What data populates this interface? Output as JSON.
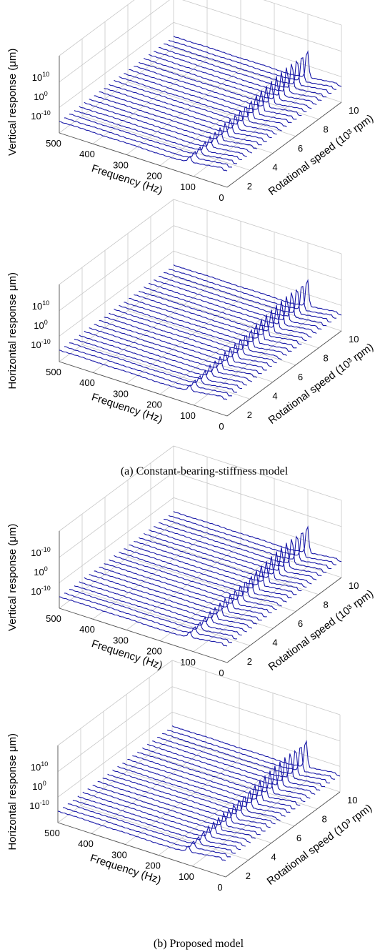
{
  "figure": {
    "caption_a": "(a) Constant-bearing-stiffness model",
    "caption_b": "(b) Proposed model"
  },
  "chart_data": [
    {
      "type": "line",
      "panel": "a-top",
      "zlabel": "Vertical response (μm)",
      "xlabel": "Frequency (Hz)",
      "ylabel": "Rotational speed (10³ rpm)",
      "x_ticks": [
        "500",
        "400",
        "300",
        "200",
        "100",
        "0"
      ],
      "y_ticks": [
        "2",
        "4",
        "6",
        "8",
        "10"
      ],
      "z_ticks": [
        "10^10",
        "10^0",
        "10^-10"
      ],
      "xlim": [
        0,
        500
      ],
      "ylim": [
        1,
        10
      ],
      "zscale": "log",
      "series_count": 24,
      "x": [
        0,
        50,
        80,
        100,
        110,
        120,
        140,
        200,
        300,
        400,
        500
      ],
      "rotational_speed": [
        1,
        1.4,
        1.8,
        2.2,
        2.6,
        3,
        3.4,
        3.8,
        4.2,
        4.6,
        5,
        5.4,
        5.8,
        6.2,
        6.6,
        7,
        7.4,
        7.8,
        8.2,
        8.6,
        9,
        9.4,
        9.8,
        10
      ],
      "resonance_peak_hz": [
        112,
        112,
        112,
        112,
        112,
        112,
        112,
        112,
        112,
        112,
        112,
        112,
        112,
        112,
        112,
        112,
        112,
        112,
        112,
        112,
        112,
        112,
        112,
        112
      ]
    },
    {
      "type": "line",
      "panel": "a-bottom",
      "zlabel": "Horizontal response μm)",
      "xlabel": "Frequency (Hz)",
      "ylabel": "Rotational speed (10³ rpm)",
      "x_ticks": [
        "500",
        "400",
        "300",
        "200",
        "100",
        "0"
      ],
      "y_ticks": [
        "2",
        "4",
        "6",
        "8",
        "10"
      ],
      "z_ticks": [
        "10^10",
        "10^0",
        "10^-10"
      ],
      "xlim": [
        0,
        500
      ],
      "ylim": [
        1,
        10
      ],
      "zscale": "log",
      "series_count": 24
    },
    {
      "type": "line",
      "panel": "b-top",
      "zlabel": "Vertical response (μm)",
      "xlabel": "Frequency (Hz)",
      "ylabel": "Rotational speed (10³ rpm)",
      "x_ticks": [
        "500",
        "400",
        "300",
        "200",
        "100",
        "0"
      ],
      "y_ticks": [
        "2",
        "4",
        "6",
        "8",
        "10"
      ],
      "z_ticks": [
        "10^-10",
        "10^0",
        "10^-10"
      ],
      "xlim": [
        0,
        500
      ],
      "ylim": [
        1,
        10
      ],
      "zscale": "log",
      "series_count": 24
    },
    {
      "type": "line",
      "panel": "b-bottom",
      "zlabel": "Horizontal response μm)",
      "xlabel": "Frequency (Hz)",
      "ylabel": "Rotational speed (10³ rpm)",
      "x_ticks": [
        "500",
        "400",
        "300",
        "200",
        "100",
        "0"
      ],
      "y_ticks": [
        "2",
        "4",
        "6",
        "8",
        "10"
      ],
      "z_ticks": [
        "10^10",
        "10^0",
        "10^-10"
      ],
      "xlim": [
        0,
        500
      ],
      "ylim": [
        1,
        10
      ],
      "zscale": "log",
      "series_count": 24
    }
  ]
}
